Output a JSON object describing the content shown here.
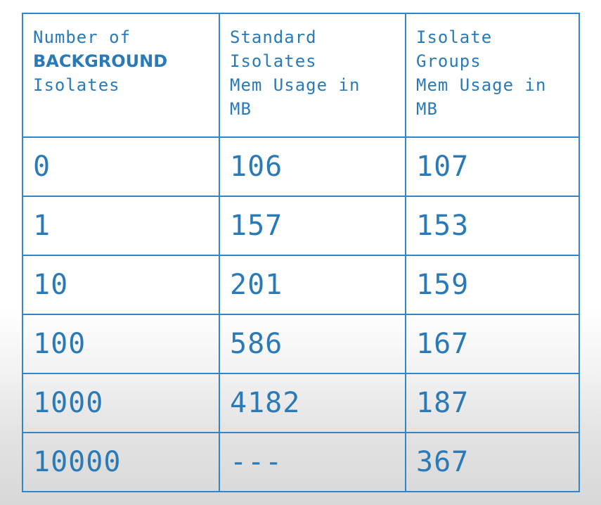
{
  "table": {
    "headers": [
      {
        "lines": [
          "Number of",
          "BACKGROUND",
          "Isolates"
        ]
      },
      {
        "lines": [
          "Standard",
          "Isolates",
          "Mem Usage in",
          "MB"
        ]
      },
      {
        "lines": [
          "Isolate",
          "Groups",
          "Mem Usage in",
          "MB"
        ]
      }
    ],
    "rows": [
      {
        "count": "0",
        "standard": "106",
        "groups": "107"
      },
      {
        "count": "1",
        "standard": "157",
        "groups": "153"
      },
      {
        "count": "10",
        "standard": "201",
        "groups": "159"
      },
      {
        "count": "100",
        "standard": "586",
        "groups": "167"
      },
      {
        "count": "1000",
        "standard": "4182",
        "groups": "187"
      },
      {
        "count": "10000",
        "standard": "---",
        "groups": "367"
      }
    ]
  },
  "colors": {
    "text": "#2a7ab8",
    "border": "#2f86c9",
    "faded": "#cfcfcf"
  }
}
